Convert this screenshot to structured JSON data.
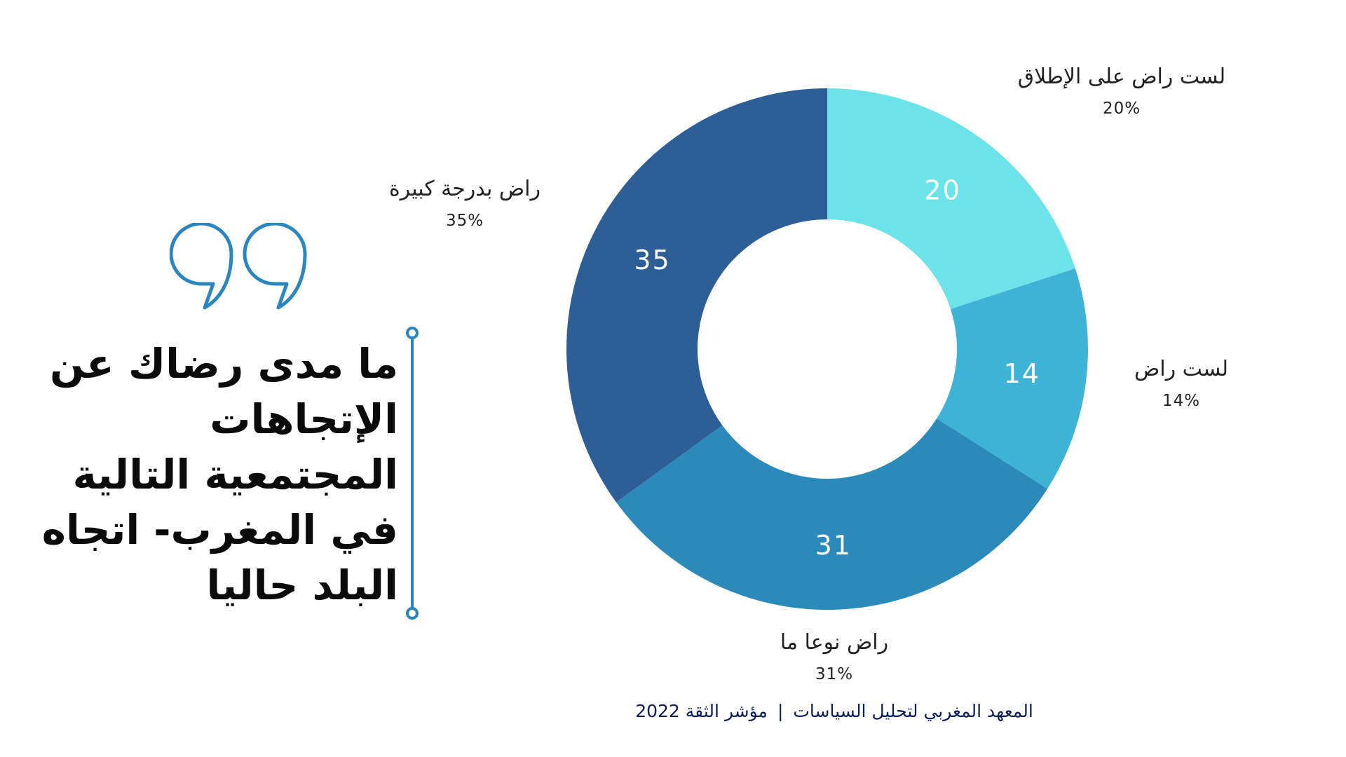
{
  "question": {
    "title": "ما مدى رضاك عن الإتجاهات المجتمعية التالية في المغرب- اتجاه البلد حاليا"
  },
  "footer": {
    "institute": "المعهد المغربي لتحليل السياسات",
    "index": "مؤشر الثقة 2022"
  },
  "colors": {
    "accent_line": "#2b86bf",
    "quote_icon": "#2b86bf",
    "title_text": "#0b0b0b",
    "footer_text": "#0b1d56"
  },
  "icons": {
    "quote": "closing-quote-icon"
  },
  "chart_data": {
    "type": "pie",
    "variant": "donut",
    "slices": [
      {
        "name": "لست راض على الإطلاق",
        "value": 20,
        "percent_label": "20%",
        "color": "#6be3e8"
      },
      {
        "name": "لست راض",
        "value": 14,
        "percent_label": "14%",
        "color": "#3fb3d5"
      },
      {
        "name": "راض نوعا ما",
        "value": 31,
        "percent_label": "31%",
        "color": "#2b8aba"
      },
      {
        "name": "راض بدرجة كبيرة",
        "value": 35,
        "percent_label": "35%",
        "color": "#2e5e96"
      }
    ],
    "value_labels_inside": true,
    "value_label_color": "#ffffff"
  }
}
